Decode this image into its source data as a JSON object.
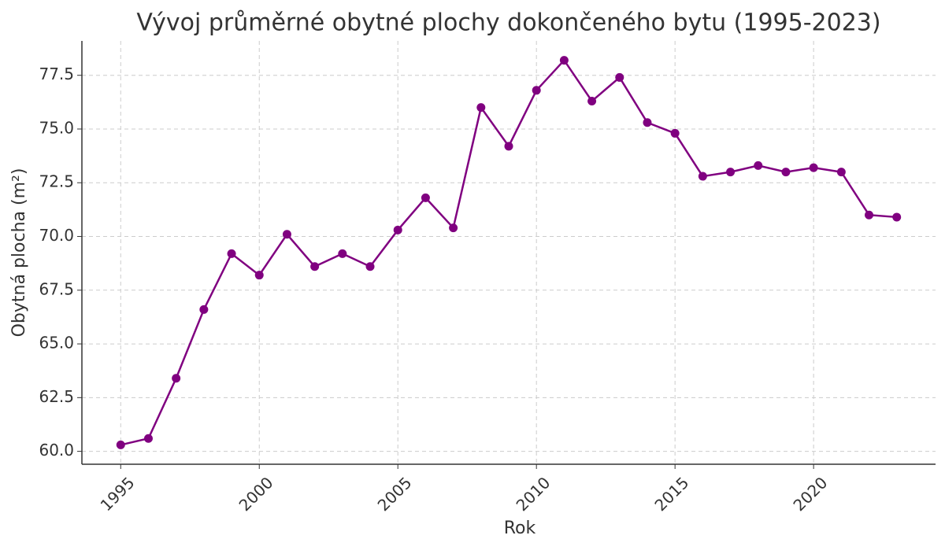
{
  "chart_data": {
    "type": "line",
    "title": "Vývoj průměrné obytné plochy dokončeného bytu (1995-2023)",
    "x_label": "Rok",
    "y_label": "Obytná plocha (m²)",
    "x": [
      1995,
      1996,
      1997,
      1998,
      1999,
      2000,
      2001,
      2002,
      2003,
      2004,
      2005,
      2006,
      2007,
      2008,
      2009,
      2010,
      2011,
      2012,
      2013,
      2014,
      2015,
      2016,
      2017,
      2018,
      2019,
      2020,
      2021,
      2022,
      2023
    ],
    "series": [
      {
        "name": "Obytná plocha",
        "color": "#800080",
        "values": [
          60.3,
          60.6,
          63.4,
          66.6,
          69.2,
          68.2,
          70.1,
          68.6,
          69.2,
          68.6,
          70.3,
          71.8,
          70.4,
          76.0,
          74.2,
          76.8,
          78.2,
          76.3,
          77.4,
          75.3,
          74.8,
          72.8,
          73.0,
          73.3,
          73.0,
          73.2,
          73.0,
          71.0,
          70.9
        ]
      }
    ],
    "xlim": [
      1993.6,
      2024.4
    ],
    "ylim": [
      59.4,
      79.1
    ],
    "xticks": [
      1995,
      2000,
      2005,
      2010,
      2015,
      2020
    ],
    "yticks": [
      {
        "value": 60,
        "label": "60.0"
      },
      {
        "value": 62.5,
        "label": "62.5"
      },
      {
        "value": 65,
        "label": "65.0"
      },
      {
        "value": 67.5,
        "label": "67.5"
      },
      {
        "value": 70,
        "label": "70.0"
      },
      {
        "value": 72.5,
        "label": "72.5"
      },
      {
        "value": 75,
        "label": "75.0"
      },
      {
        "value": 77.5,
        "label": "77.5"
      }
    ],
    "grid": true
  }
}
